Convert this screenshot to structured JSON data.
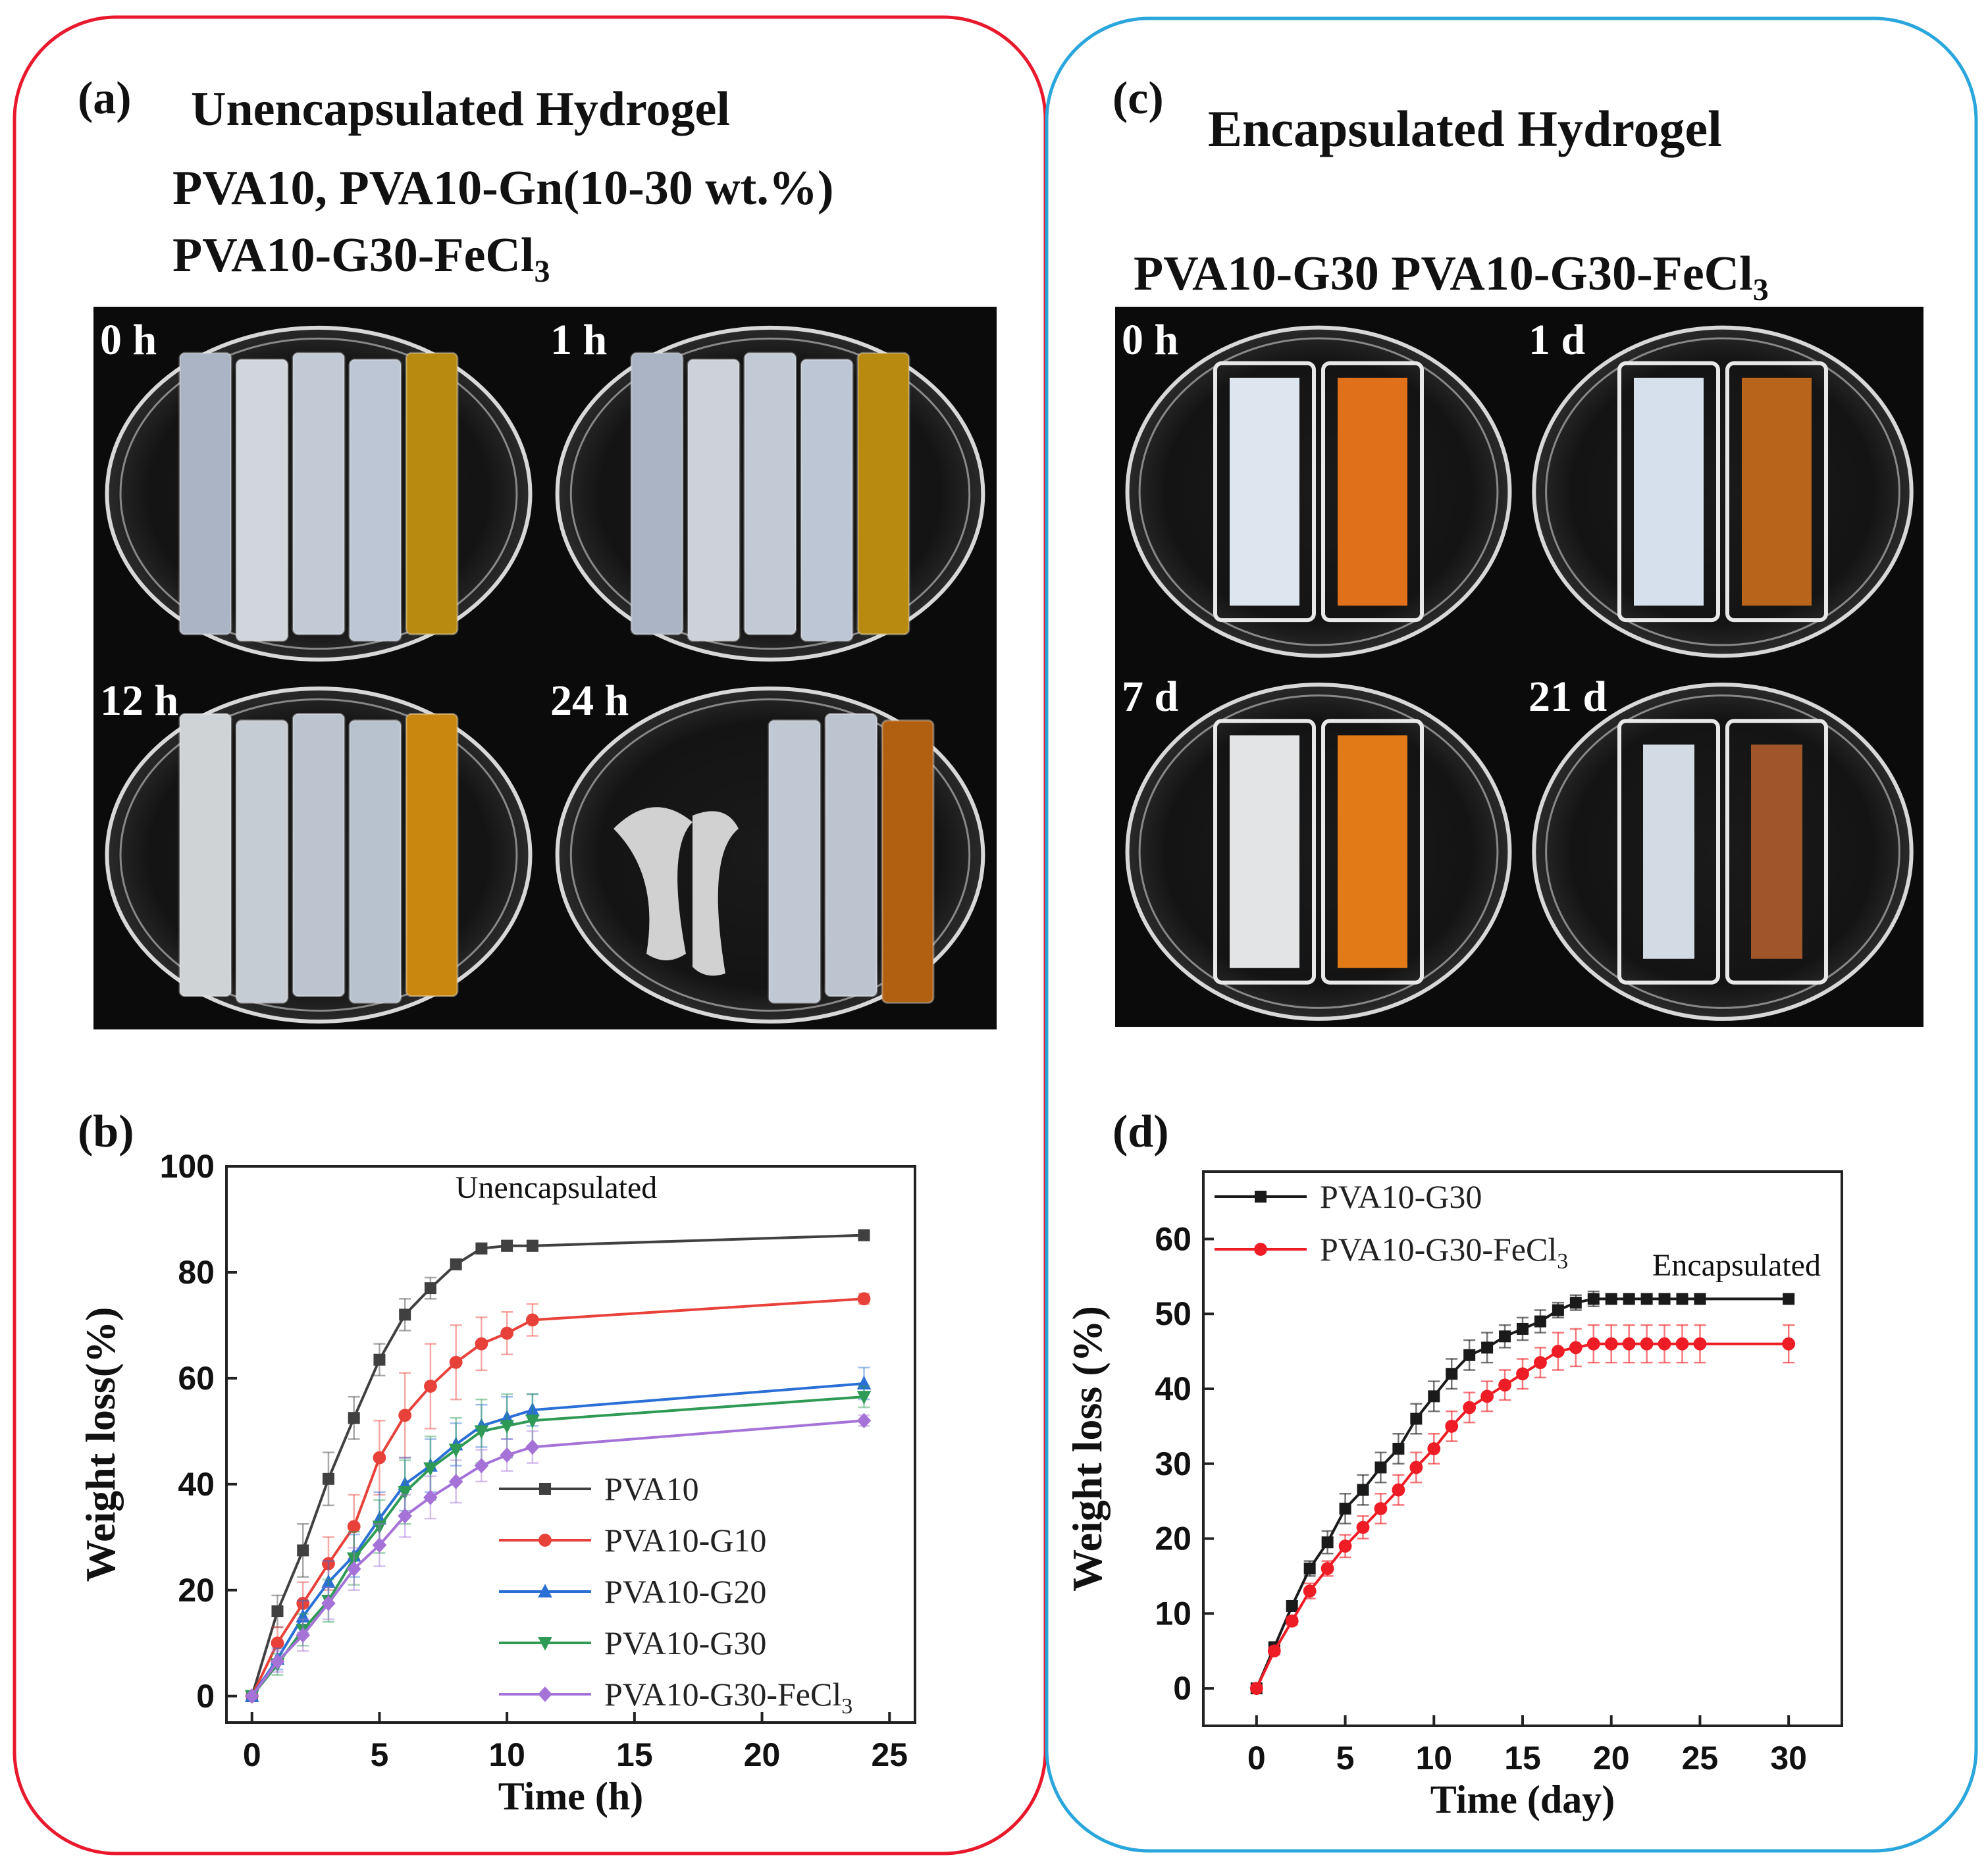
{
  "panel_a": {
    "label": "(a)",
    "title_lines": [
      "Unencapsulated Hydrogel",
      "PVA10, PVA10-Gn(10-30 wt.%)",
      "PVA10-G30-FeCl"
    ],
    "title_sub": "3",
    "photos": [
      {
        "time": "0 h",
        "strips": [
          "#aab4c4",
          "#d0d6dc",
          "#c2cad6",
          "#bcc6d4",
          "#b88a10"
        ]
      },
      {
        "time": "1 h",
        "strips": [
          "#aab4c4",
          "#ccd2d8",
          "#c2cad6",
          "#bcc6d4",
          "#b88a10"
        ]
      },
      {
        "time": "12 h",
        "strips": [
          "#cfd3d6",
          "#c6ccd4",
          "#bcc4d0",
          "#b8c2ce",
          "#c9870f"
        ]
      },
      {
        "time": "24 h",
        "strips": [
          "#e6e6e6",
          "#c0c8d4",
          "#bcc4d0",
          "#b06010"
        ]
      }
    ]
  },
  "panel_c": {
    "label": "(c)",
    "title": "Encapsulated Hydrogel",
    "subtitle_1": "PVA10-G30 PVA10-G30-FeCl",
    "subtitle_sub": "3",
    "photos": [
      {
        "time": "0 h",
        "colors": [
          "#dde6ee",
          "#e0701a"
        ]
      },
      {
        "time": "1 d",
        "colors": [
          "#d6e0ec",
          "#b8641a"
        ]
      },
      {
        "time": "7 d",
        "colors": [
          "#e2e4e6",
          "#e27a18"
        ]
      },
      {
        "time": "21 d",
        "colors": [
          "#d2dae4",
          "#a0562a"
        ]
      }
    ]
  },
  "chart_data": [
    {
      "panel": "(b)",
      "type": "line",
      "annotation": "Unencapsulated",
      "xlabel": "Time (h)",
      "ylabel": "Weight loss(%)",
      "xlim": [
        -1,
        26
      ],
      "ylim": [
        -5,
        100
      ],
      "xticks": [
        0,
        5,
        10,
        15,
        20,
        25
      ],
      "yticks": [
        0,
        20,
        40,
        60,
        80,
        100
      ],
      "legend_position": "bottom-right",
      "series": [
        {
          "name": "PVA10",
          "color": "#404040",
          "marker": "square",
          "x": [
            0,
            1,
            2,
            3,
            4,
            5,
            6,
            7,
            8,
            9,
            10,
            11,
            24
          ],
          "y": [
            0,
            16,
            27.5,
            41,
            52.5,
            63.5,
            72,
            77,
            81.5,
            84.5,
            85,
            85,
            87
          ],
          "err": [
            0,
            3,
            5,
            5,
            4,
            3,
            3,
            2,
            1,
            1,
            1,
            1,
            1
          ]
        },
        {
          "name": "PVA10-G10",
          "color": "#e8413a",
          "marker": "circle",
          "x": [
            0,
            1,
            2,
            3,
            4,
            5,
            6,
            7,
            8,
            9,
            10,
            11,
            24
          ],
          "y": [
            0,
            10,
            17.5,
            25,
            32,
            45,
            53,
            58.5,
            63,
            66.5,
            68.5,
            71,
            75
          ],
          "err": [
            0,
            3,
            4,
            5,
            6,
            7,
            8,
            8,
            7,
            5,
            4,
            3,
            1
          ]
        },
        {
          "name": "PVA10-G20",
          "color": "#2a6fd6",
          "marker": "triangle-up",
          "x": [
            0,
            1,
            2,
            3,
            4,
            5,
            6,
            7,
            8,
            9,
            10,
            11,
            24
          ],
          "y": [
            0,
            7,
            15,
            21.5,
            26.5,
            33.5,
            40,
            43.5,
            47.5,
            51,
            52.5,
            54,
            59
          ],
          "err": [
            0,
            2,
            3,
            4,
            4,
            5,
            5,
            5,
            4,
            4,
            4,
            3,
            3
          ]
        },
        {
          "name": "PVA10-G30",
          "color": "#2e9a55",
          "marker": "triangle-down",
          "x": [
            0,
            1,
            2,
            3,
            4,
            5,
            6,
            7,
            8,
            9,
            10,
            11,
            24
          ],
          "y": [
            0,
            6,
            12.5,
            18,
            26,
            32,
            38.5,
            43,
            46.5,
            50,
            51,
            52,
            56.5
          ],
          "err": [
            0,
            2,
            3,
            4,
            5,
            5,
            6,
            6,
            6,
            6,
            6,
            5,
            2
          ]
        },
        {
          "name": "PVA10-G30-FeCl",
          "name_sub": "3",
          "color": "#a572d8",
          "marker": "diamond",
          "x": [
            0,
            1,
            2,
            3,
            4,
            5,
            6,
            7,
            8,
            9,
            10,
            11,
            24
          ],
          "y": [
            0,
            6.5,
            11.5,
            17.5,
            24,
            28.5,
            34,
            37.5,
            40.5,
            43.5,
            45.5,
            47,
            52
          ],
          "err": [
            0,
            2,
            3,
            3,
            4,
            4,
            4,
            4,
            4,
            3,
            3,
            3,
            1
          ]
        }
      ]
    },
    {
      "panel": "(d)",
      "type": "line",
      "annotation": "Encapsulated",
      "xlabel": "Time (day)",
      "ylabel": "Weight loss (%)",
      "xlim": [
        -3,
        33
      ],
      "ylim": [
        -5,
        69
      ],
      "xticks": [
        0,
        5,
        10,
        15,
        20,
        25,
        30
      ],
      "yticks": [
        0,
        10,
        20,
        30,
        40,
        50,
        60
      ],
      "legend_position": "top-left",
      "series": [
        {
          "name": "PVA10-G30",
          "color": "#1a1a1a",
          "marker": "square",
          "x": [
            0,
            1,
            2,
            3,
            4,
            5,
            6,
            7,
            8,
            9,
            10,
            11,
            12,
            13,
            14,
            15,
            16,
            17,
            18,
            19,
            20,
            21,
            22,
            23,
            24,
            25,
            30
          ],
          "y": [
            0,
            5.5,
            11,
            16,
            19.5,
            24,
            26.5,
            29.5,
            32,
            36,
            39,
            42,
            44.5,
            45.5,
            47,
            48,
            49,
            50.5,
            51.5,
            52,
            52,
            52,
            52,
            52,
            52,
            52,
            52
          ],
          "err": [
            0,
            0.5,
            0.5,
            1,
            1.5,
            2,
            2,
            2,
            2,
            2,
            2,
            2,
            2,
            2,
            1.5,
            1.5,
            1.5,
            1,
            1,
            1,
            0.5,
            0.5,
            0.5,
            0.5,
            0.5,
            0.5,
            0.5
          ]
        },
        {
          "name": "PVA10-G30-FeCl",
          "name_sub": "3",
          "color": "#ee1c24",
          "marker": "circle",
          "x": [
            0,
            1,
            2,
            3,
            4,
            5,
            6,
            7,
            8,
            9,
            10,
            11,
            12,
            13,
            14,
            15,
            16,
            17,
            18,
            19,
            20,
            21,
            22,
            23,
            24,
            25,
            30
          ],
          "y": [
            0,
            5,
            9,
            13,
            16,
            19,
            21.5,
            24,
            26.5,
            29.5,
            32,
            35,
            37.5,
            39,
            40.5,
            42,
            43.5,
            45,
            45.5,
            46,
            46,
            46,
            46,
            46,
            46,
            46,
            46
          ],
          "err": [
            0,
            0.5,
            0.5,
            1,
            1,
            1.5,
            1.5,
            2,
            2,
            2,
            2,
            2,
            2,
            2,
            2,
            2,
            2,
            2.5,
            2.5,
            2.5,
            2.5,
            2.5,
            2.5,
            2.5,
            2.5,
            2.5,
            2.5
          ]
        }
      ]
    }
  ]
}
